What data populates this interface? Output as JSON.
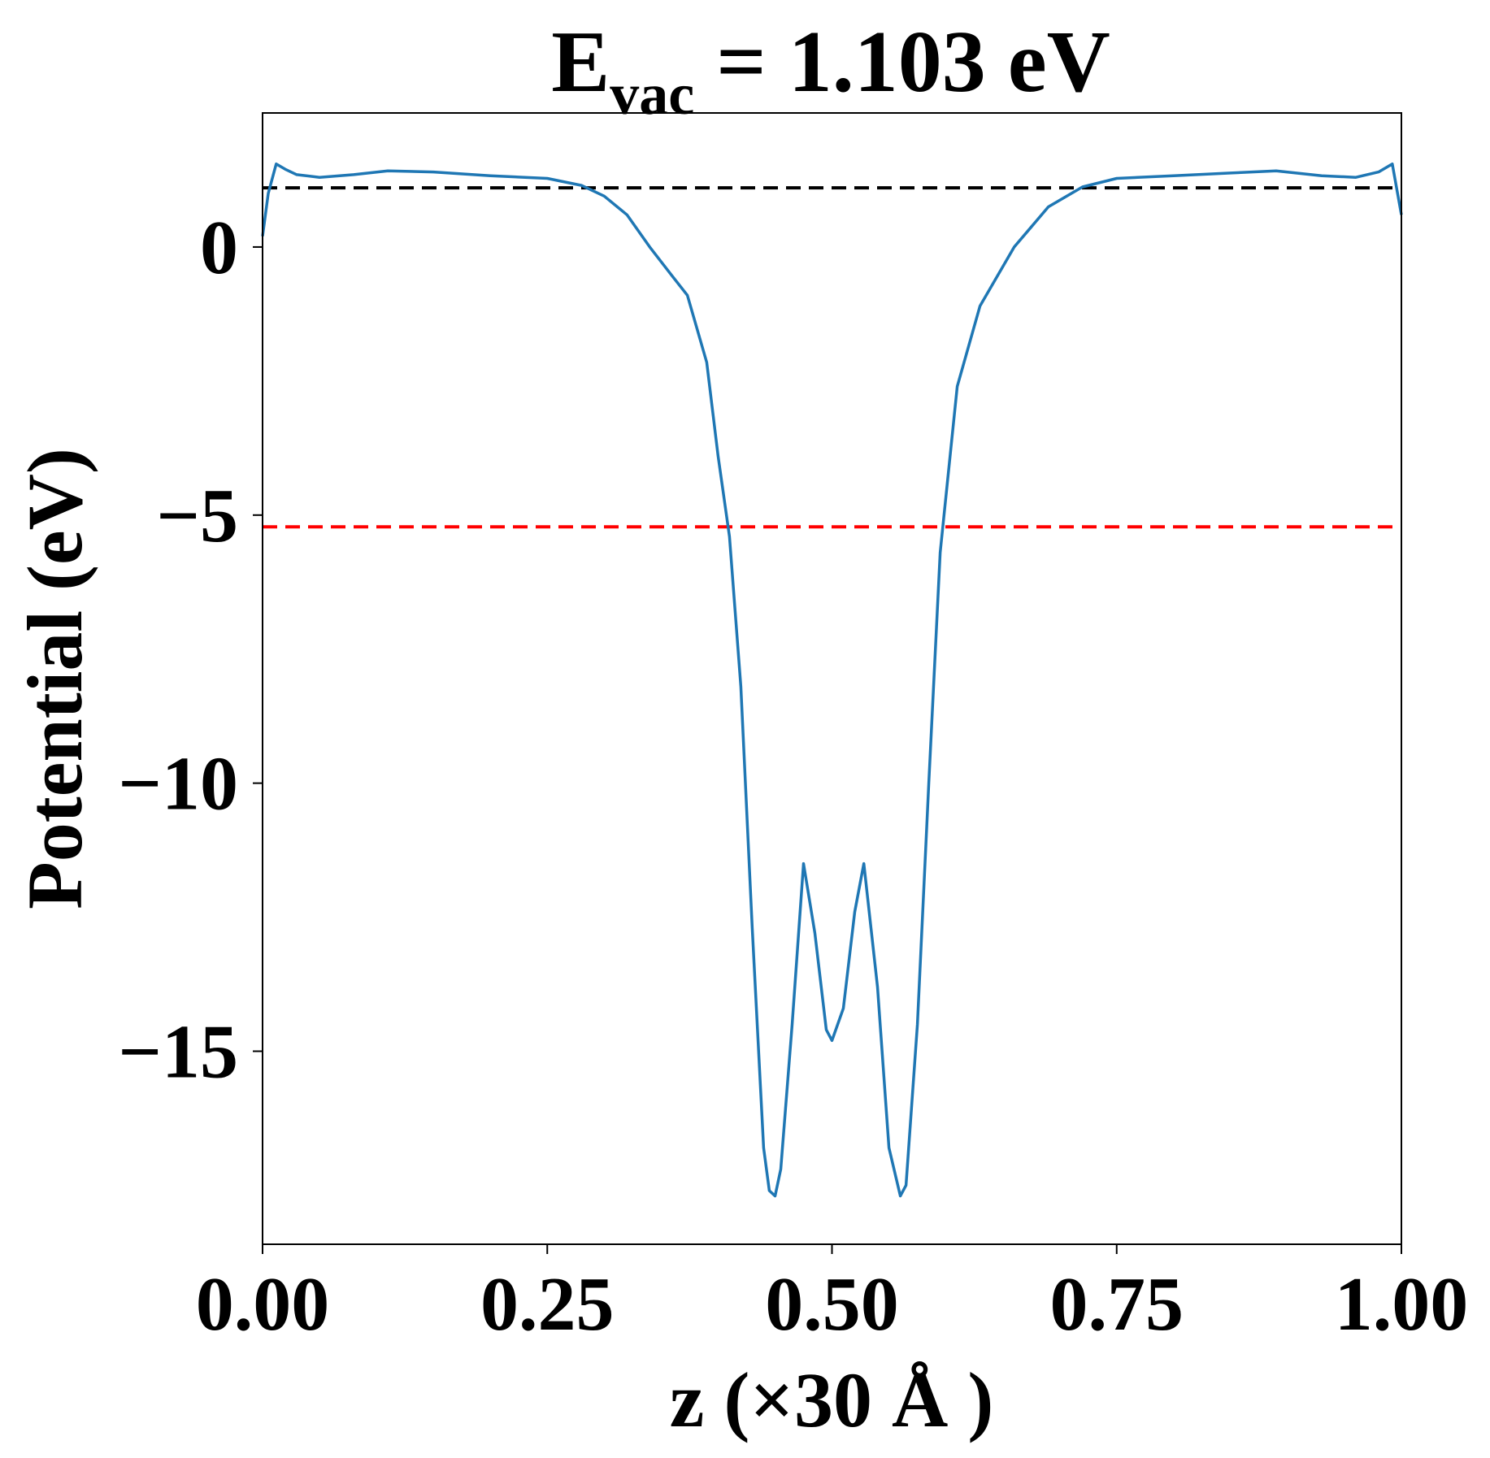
{
  "chart_data": {
    "type": "line",
    "title": [
      "E",
      "vac",
      " = 1.103 eV"
    ],
    "xlabel": "z (×30 Å )",
    "ylabel": "Potential (eV)",
    "xlim": [
      0,
      1
    ],
    "ylim": [
      -18.6,
      2.5
    ],
    "xticks": [
      {
        "value": 0,
        "label": "0.00"
      },
      {
        "value": 0.25,
        "label": "0.25"
      },
      {
        "value": 0.5,
        "label": "0.50"
      },
      {
        "value": 0.75,
        "label": "0.75"
      },
      {
        "value": 1,
        "label": "1.00"
      }
    ],
    "yticks": [
      0,
      {
        "value": -5,
        "label": "−5"
      },
      {
        "value": -10,
        "label": "−10"
      },
      {
        "value": -15,
        "label": "−15"
      }
    ],
    "hlines": [
      {
        "value": 1.103,
        "color": "#000000"
      },
      {
        "value": -5.22,
        "color": "#ff0000"
      }
    ],
    "x": [
      0,
      0.005,
      0.012,
      0.02,
      0.03,
      0.05,
      0.08,
      0.11,
      0.15,
      0.2,
      0.25,
      0.28,
      0.3,
      0.32,
      0.34,
      0.36,
      0.373,
      0.39,
      0.4,
      0.41,
      0.42,
      0.43,
      0.44,
      0.445,
      0.45,
      0.455,
      0.465,
      0.475,
      0.485,
      0.495,
      0.5,
      0.51,
      0.52,
      0.528,
      0.54,
      0.55,
      0.56,
      0.565,
      0.575,
      0.585,
      0.595,
      0.61,
      0.63,
      0.66,
      0.69,
      0.72,
      0.75,
      0.8,
      0.85,
      0.89,
      0.93,
      0.96,
      0.98,
      0.992,
      1
    ],
    "series": [
      {
        "color": "#1f77b4",
        "values": [
          0.2,
          1.0,
          1.55,
          1.45,
          1.35,
          1.3,
          1.35,
          1.42,
          1.4,
          1.33,
          1.28,
          1.15,
          0.95,
          0.6,
          0.0,
          -0.55,
          -0.9,
          -2.15,
          -3.9,
          -5.4,
          -8.2,
          -12.7,
          -16.8,
          -17.6,
          -17.7,
          -17.2,
          -14.5,
          -11.5,
          -12.8,
          -14.6,
          -14.8,
          -14.2,
          -12.4,
          -11.5,
          -13.8,
          -16.8,
          -17.7,
          -17.5,
          -14.5,
          -10,
          -5.7,
          -2.6,
          -1.1,
          0,
          0.75,
          1.12,
          1.28,
          1.33,
          1.38,
          1.42,
          1.33,
          1.3,
          1.4,
          1.55,
          0.6
        ]
      }
    ]
  }
}
